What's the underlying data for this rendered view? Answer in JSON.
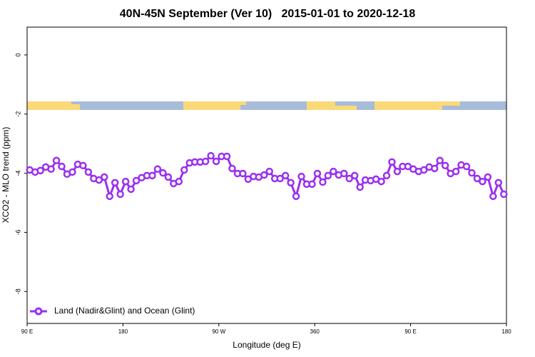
{
  "chart_data": {
    "type": "line",
    "title": "40N-45N September (Ver 10)   2015-01-01 to 2020-12-18",
    "xlabel": "Longitude (deg E)",
    "ylabel": "XCO2 - MLO trend (ppm)",
    "x": [
      92.5,
      97.5,
      102.5,
      107.5,
      112.5,
      117.5,
      122.5,
      127.5,
      132.5,
      137.5,
      142.5,
      147.5,
      152.5,
      157.5,
      162.5,
      167.5,
      172.5,
      177.5,
      182.5,
      187.5,
      192.5,
      197.5,
      202.5,
      207.5,
      212.5,
      217.5,
      222.5,
      227.5,
      232.5,
      237.5,
      242.5,
      247.5,
      252.5,
      257.5,
      262.5,
      267.5,
      272.5,
      277.5,
      282.5,
      287.5,
      292.5,
      297.5,
      302.5,
      307.5,
      312.5,
      317.5,
      322.5,
      327.5,
      332.5,
      337.5,
      342.5,
      347.5,
      352.5,
      357.5,
      362.5,
      367.5,
      372.5,
      377.5,
      382.5,
      387.5,
      392.5,
      397.5,
      402.5,
      407.5,
      412.5,
      417.5,
      422.5,
      427.5,
      432.5,
      437.5,
      442.5,
      447.5,
      452.5,
      457.5,
      462.5,
      467.5,
      472.5,
      477.5,
      482.5,
      487.5,
      492.5,
      497.5,
      502.5,
      507.5,
      512.5,
      517.5,
      522.5,
      527.5,
      532.5,
      537.5
    ],
    "series": [
      {
        "name": "Land (Nadir&Glint) and Ocean (Glint)",
        "color": "#9b30f0",
        "values": [
          -3.89,
          -3.96,
          -3.91,
          -3.79,
          -3.86,
          -3.57,
          -3.77,
          -4.03,
          -3.96,
          -3.7,
          -3.74,
          -3.96,
          -4.18,
          -4.23,
          -4.13,
          -4.78,
          -4.32,
          -4.71,
          -4.28,
          -4.54,
          -4.25,
          -4.15,
          -4.08,
          -4.08,
          -3.86,
          -3.99,
          -4.13,
          -4.35,
          -4.28,
          -3.89,
          -3.65,
          -3.62,
          -3.62,
          -3.6,
          -3.41,
          -3.6,
          -3.43,
          -3.43,
          -3.84,
          -4.01,
          -4.01,
          -4.2,
          -4.11,
          -4.13,
          -4.06,
          -3.94,
          -4.18,
          -4.18,
          -4.08,
          -4.32,
          -4.78,
          -4.11,
          -4.37,
          -4.37,
          -4.01,
          -4.3,
          -4.08,
          -3.94,
          -4.06,
          -4.01,
          -4.18,
          -4.08,
          -4.47,
          -4.23,
          -4.25,
          -4.2,
          -4.28,
          -4.08,
          -3.62,
          -3.94,
          -3.77,
          -3.77,
          -3.86,
          -3.94,
          -3.89,
          -3.79,
          -3.84,
          -3.57,
          -3.74,
          -4.01,
          -3.94,
          -3.72,
          -3.77,
          -3.99,
          -4.18,
          -4.28,
          -4.13,
          -4.78,
          -4.32,
          -4.71
        ]
      }
    ],
    "xlim": [
      90,
      540
    ],
    "xticks": [
      {
        "value": 90,
        "label": "90 E"
      },
      180,
      {
        "value": 270,
        "label": "90 W"
      },
      360,
      {
        "value": 450,
        "label": "90 E"
      },
      {
        "value": 540,
        "label": "180"
      }
    ],
    "ylim": [
      -9.08,
      0.94
    ],
    "yticks": [
      0,
      -2,
      -4,
      -6,
      -8
    ],
    "legend": "bottom-left"
  }
}
